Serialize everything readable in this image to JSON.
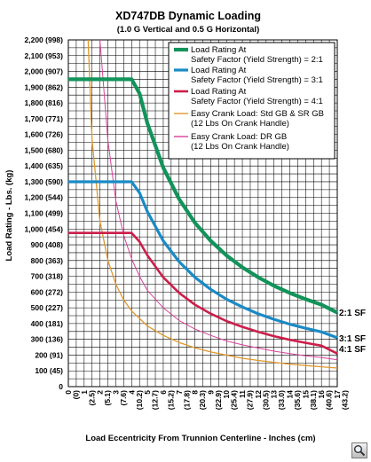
{
  "chart_data": {
    "type": "line",
    "title": "XD747DB Dynamic Loading",
    "subtitle": "(1.0 G Vertical and 0.5 G Horizontal)",
    "xlabel": "Load Eccentricity From Trunnion Centerline - Inches (cm)",
    "ylabel": "Load Rating - Lbs. (kg)",
    "xlim": [
      0,
      17
    ],
    "ylim": [
      0,
      2200
    ],
    "x_ticks": [
      "0",
      "1",
      "2",
      "3",
      "4",
      "5",
      "6",
      "7",
      "8",
      "9",
      "10",
      "11",
      "12",
      "13",
      "14",
      "15",
      "16",
      "17"
    ],
    "x_ticks_cm": [
      "(0)",
      "(2.5)",
      "(5.1)",
      "(7.6)",
      "(10.2)",
      "(12.7)",
      "(15.2)",
      "(17.8)",
      "(20.3)",
      "(22.9)",
      "(25.4)",
      "(27.9)",
      "(30.5)",
      "(33.0)",
      "(35.6)",
      "(38.1)",
      "(40.6)",
      "(43.2)"
    ],
    "y_ticks": [
      "0",
      "100 (45)",
      "200 (91)",
      "300 (136)",
      "400 (181)",
      "500 (227)",
      "600 (272)",
      "700 (318)",
      "800 (363)",
      "900 (408)",
      "1,000 (454)",
      "1,100 (499)",
      "1,200 (544)",
      "1,300 (590)",
      "1,400 (635)",
      "1,500 (680)",
      "1,600 (726)",
      "1,700 (771)",
      "1,800 (816)",
      "1,900 (862)",
      "2,000 (907)",
      "2,100 (953)",
      "2,200 (998)"
    ],
    "grid": true,
    "legend_position": "top-right",
    "series": [
      {
        "name": "Load Rating At Safety Factor (Yield Strength) = 2:1",
        "legend_lines": [
          "Load Rating At",
          "Safety Factor (Yield Strength) = 2:1"
        ],
        "color": "#12935a",
        "end_label": "2:1 SF",
        "x": [
          0,
          1,
          2,
          3,
          4,
          4.5,
          5,
          6,
          7,
          8,
          9,
          10,
          11,
          12,
          13,
          14,
          15,
          16,
          17
        ],
        "y": [
          1950,
          1950,
          1950,
          1950,
          1950,
          1860,
          1670,
          1390,
          1190,
          1040,
          925,
          832,
          757,
          694,
          640,
          594,
          555,
          520,
          470
        ]
      },
      {
        "name": "Load Rating At Safety Factor (Yield Strength) = 3:1",
        "legend_lines": [
          "Load Rating At",
          "Safety Factor (Yield Strength) = 3:1"
        ],
        "color": "#1a8ac6",
        "end_label": "3:1 SF",
        "x": [
          0,
          1,
          2,
          3,
          4,
          4.5,
          5,
          6,
          7,
          8,
          9,
          10,
          11,
          12,
          13,
          14,
          15,
          16,
          17
        ],
        "y": [
          1300,
          1300,
          1300,
          1300,
          1300,
          1230,
          1110,
          925,
          793,
          694,
          617,
          555,
          505,
          462,
          427,
          396,
          370,
          347,
          310
        ]
      },
      {
        "name": "Load Rating At Safety Factor (Yield Strength) = 4:1",
        "legend_lines": [
          "Load Rating At",
          "Safety Factor (Yield Strength) = 4:1"
        ],
        "color": "#cc1e4a",
        "end_label": "4:1 SF",
        "x": [
          0,
          1,
          2,
          3,
          4,
          4.5,
          5,
          6,
          7,
          8,
          9,
          10,
          11,
          12,
          13,
          14,
          15,
          16,
          17
        ],
        "y": [
          975,
          975,
          975,
          975,
          975,
          920,
          833,
          694,
          595,
          520,
          463,
          416,
          379,
          347,
          320,
          297,
          278,
          260,
          210
        ]
      },
      {
        "name": "Easy Crank Load: Std GB & SR GB (12 Lbs On Crank Handle)",
        "legend_lines": [
          "Easy Crank Load: Std GB & SR GB",
          "(12 Lbs On Crank Handle)"
        ],
        "color": "#e0982a",
        "x": [
          1.25,
          1.5,
          2,
          2.5,
          3,
          3.5,
          4,
          5,
          6,
          7,
          8,
          9,
          10,
          11,
          12,
          13,
          14,
          15,
          16,
          17
        ],
        "y": [
          2200,
          1570,
          1050,
          800,
          650,
          550,
          480,
          385,
          325,
          280,
          246,
          220,
          200,
          180,
          166,
          154,
          143,
          134,
          126,
          118
        ]
      },
      {
        "name": "Easy Crank Load: DR GB (12 Lbs On Crank Handle)",
        "legend_lines": [
          "Easy Crank Load: DR GB",
          "(12 Lbs On Crank Handle)"
        ],
        "color": "#d8419a",
        "x": [
          2.0,
          2.5,
          3,
          3.5,
          4,
          4.5,
          5,
          6,
          7,
          8,
          9,
          10,
          11,
          12,
          13,
          14,
          15,
          16,
          17
        ],
        "y": [
          2200,
          1560,
          1180,
          960,
          810,
          700,
          610,
          500,
          420,
          365,
          325,
          290,
          265,
          245,
          225,
          210,
          195,
          185,
          170
        ]
      }
    ]
  }
}
